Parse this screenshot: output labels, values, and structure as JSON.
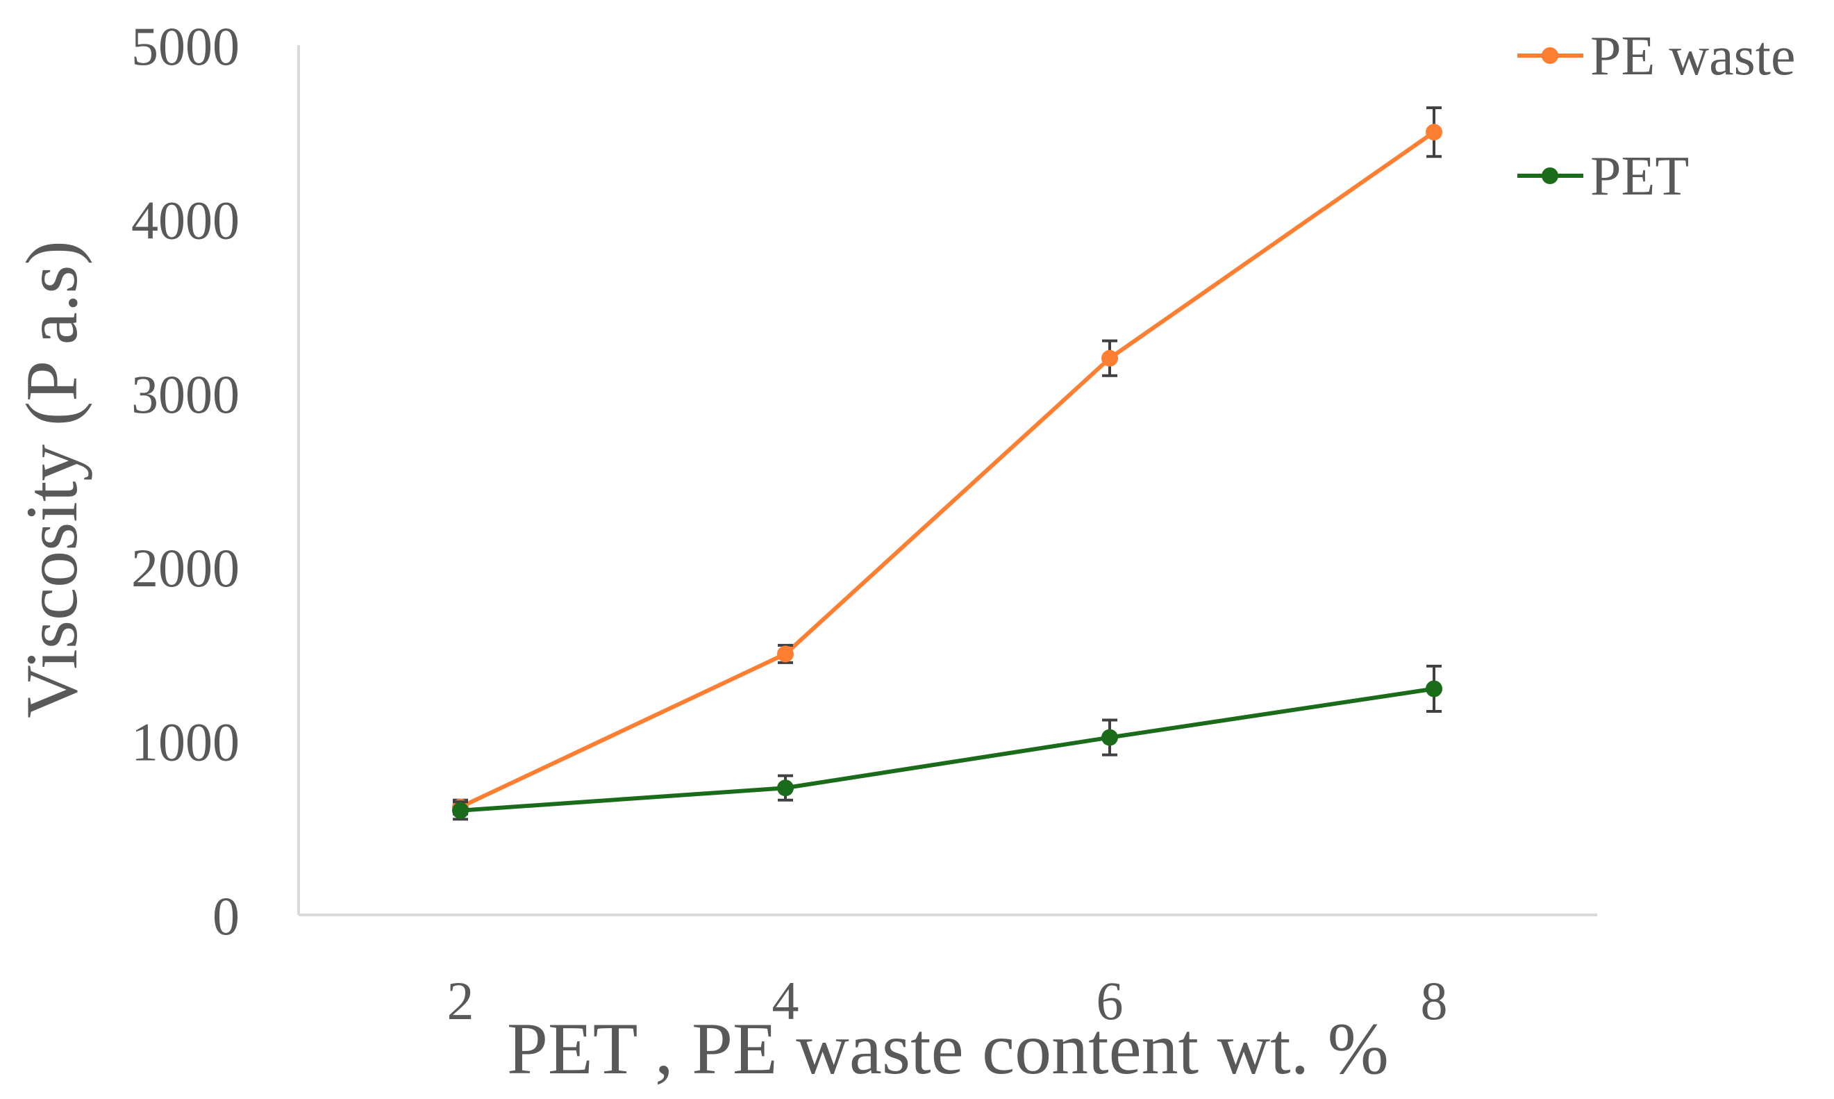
{
  "chart_data": {
    "type": "line",
    "xlabel": "PET , PE waste content wt. %",
    "ylabel": "Viscosity (P a.s)",
    "x": [
      2,
      4,
      6,
      8
    ],
    "xticks": [
      "2",
      "4",
      "6",
      "8"
    ],
    "ylim": [
      0,
      5000
    ],
    "yticks": [
      "0",
      "1000",
      "2000",
      "3000",
      "4000",
      "5000"
    ],
    "grid": false,
    "legend_position": "top-right",
    "series": [
      {
        "name": "PE waste",
        "color": "#FF7F32",
        "values": [
          620,
          1500,
          3200,
          4500
        ],
        "errors": [
          40,
          50,
          100,
          140
        ]
      },
      {
        "name": "PET",
        "color": "#1A6B1A",
        "values": [
          600,
          730,
          1020,
          1300
        ],
        "errors": [
          50,
          70,
          100,
          130
        ]
      }
    ]
  }
}
